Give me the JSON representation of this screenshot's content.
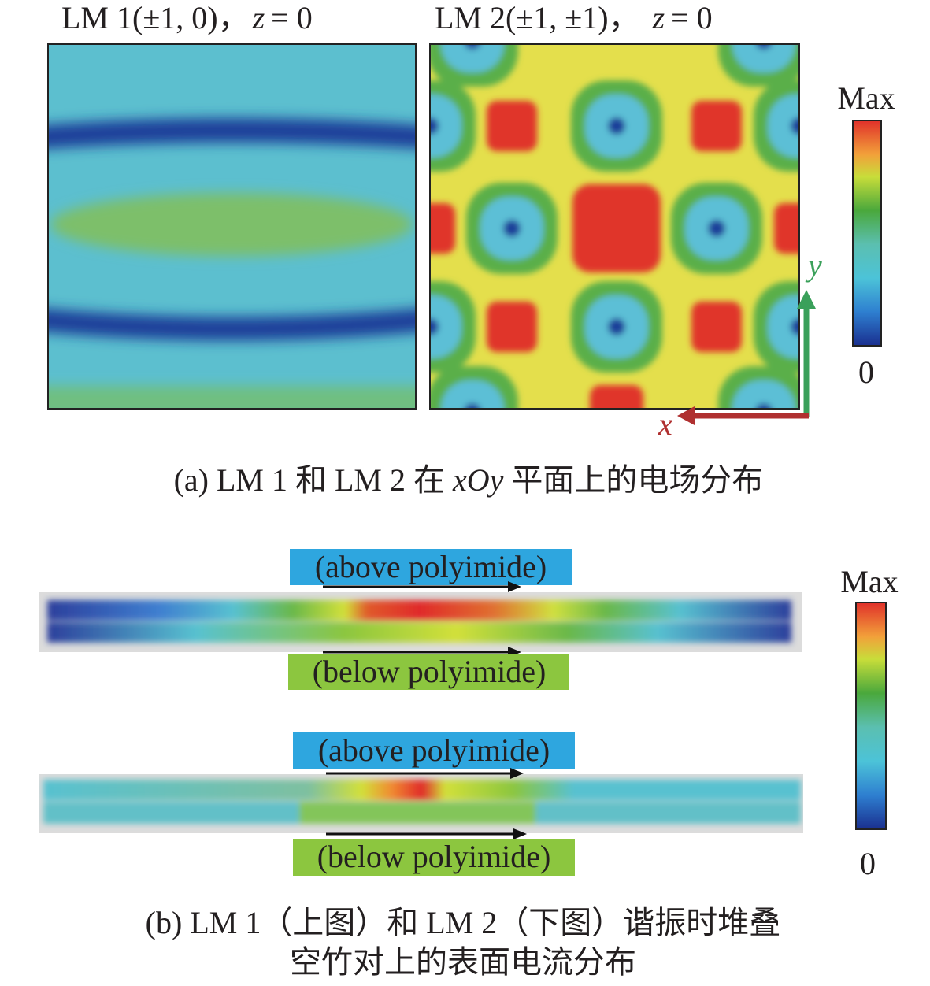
{
  "panel_a": {
    "maps": [
      {
        "title": "LM 1(±1, 0)，",
        "variable": "z",
        "equation": "= 0"
      },
      {
        "title": "LM 2(±1, ±1)，",
        "variable": "z",
        "equation": "= 0"
      }
    ],
    "colorbar": {
      "max": "Max",
      "min": "0"
    },
    "axes": {
      "x": "x",
      "y": "y"
    },
    "caption": {
      "prefix": "(a) LM 1 和 LM 2 在 ",
      "variable": "xOy",
      "suffix": " 平面上的电场分布"
    }
  },
  "panel_b": {
    "strips": [
      {
        "above": "(above polyimide)",
        "below": "(below polyimide)"
      },
      {
        "above": "(above polyimide)",
        "below": "(below polyimide)"
      }
    ],
    "colorbar": {
      "max": "Max",
      "min": "0"
    },
    "caption": {
      "lines": [
        "(b) LM 1（上图）和 LM 2（下图）谐振时堆叠",
        "空竹对上的表面电流分布"
      ]
    }
  }
}
